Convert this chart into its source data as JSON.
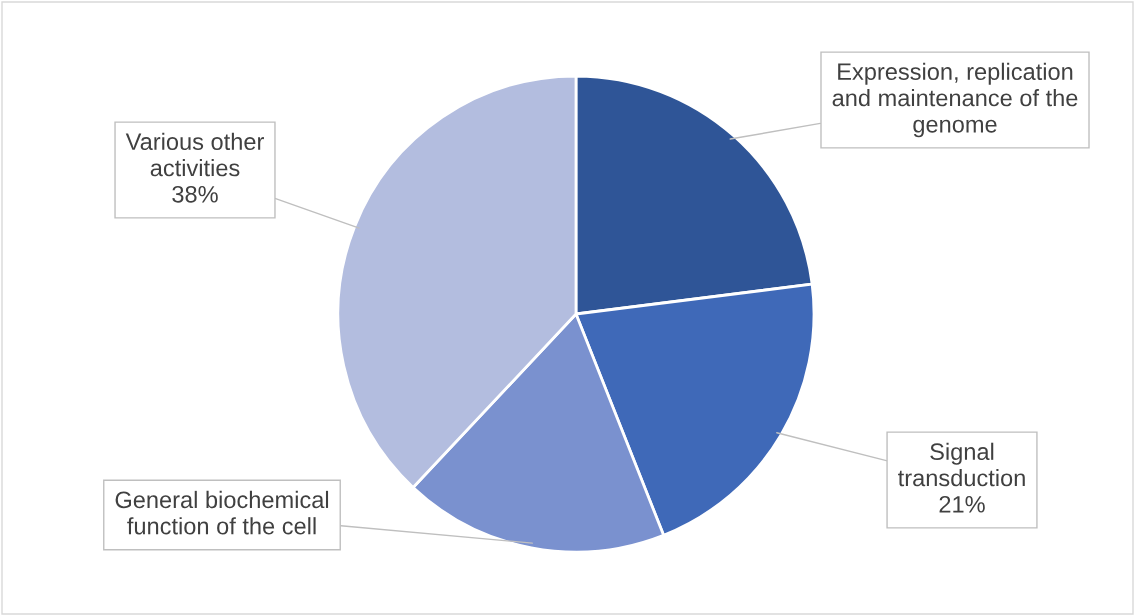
{
  "chart_data": {
    "type": "pie",
    "categories": [
      "Expression, replication\nand maintenance of the\ngenome",
      "Signal\ntransduction",
      "General biochemical\nfunction of the cell",
      "Various other\nactivities"
    ],
    "values": [
      23,
      21,
      18,
      38
    ],
    "value_labels": [
      null,
      "21%",
      null,
      "38%"
    ],
    "colors": [
      "#2f5597",
      "#3f69b8",
      "#7a91cf",
      "#b3bddf"
    ],
    "legend": false
  }
}
